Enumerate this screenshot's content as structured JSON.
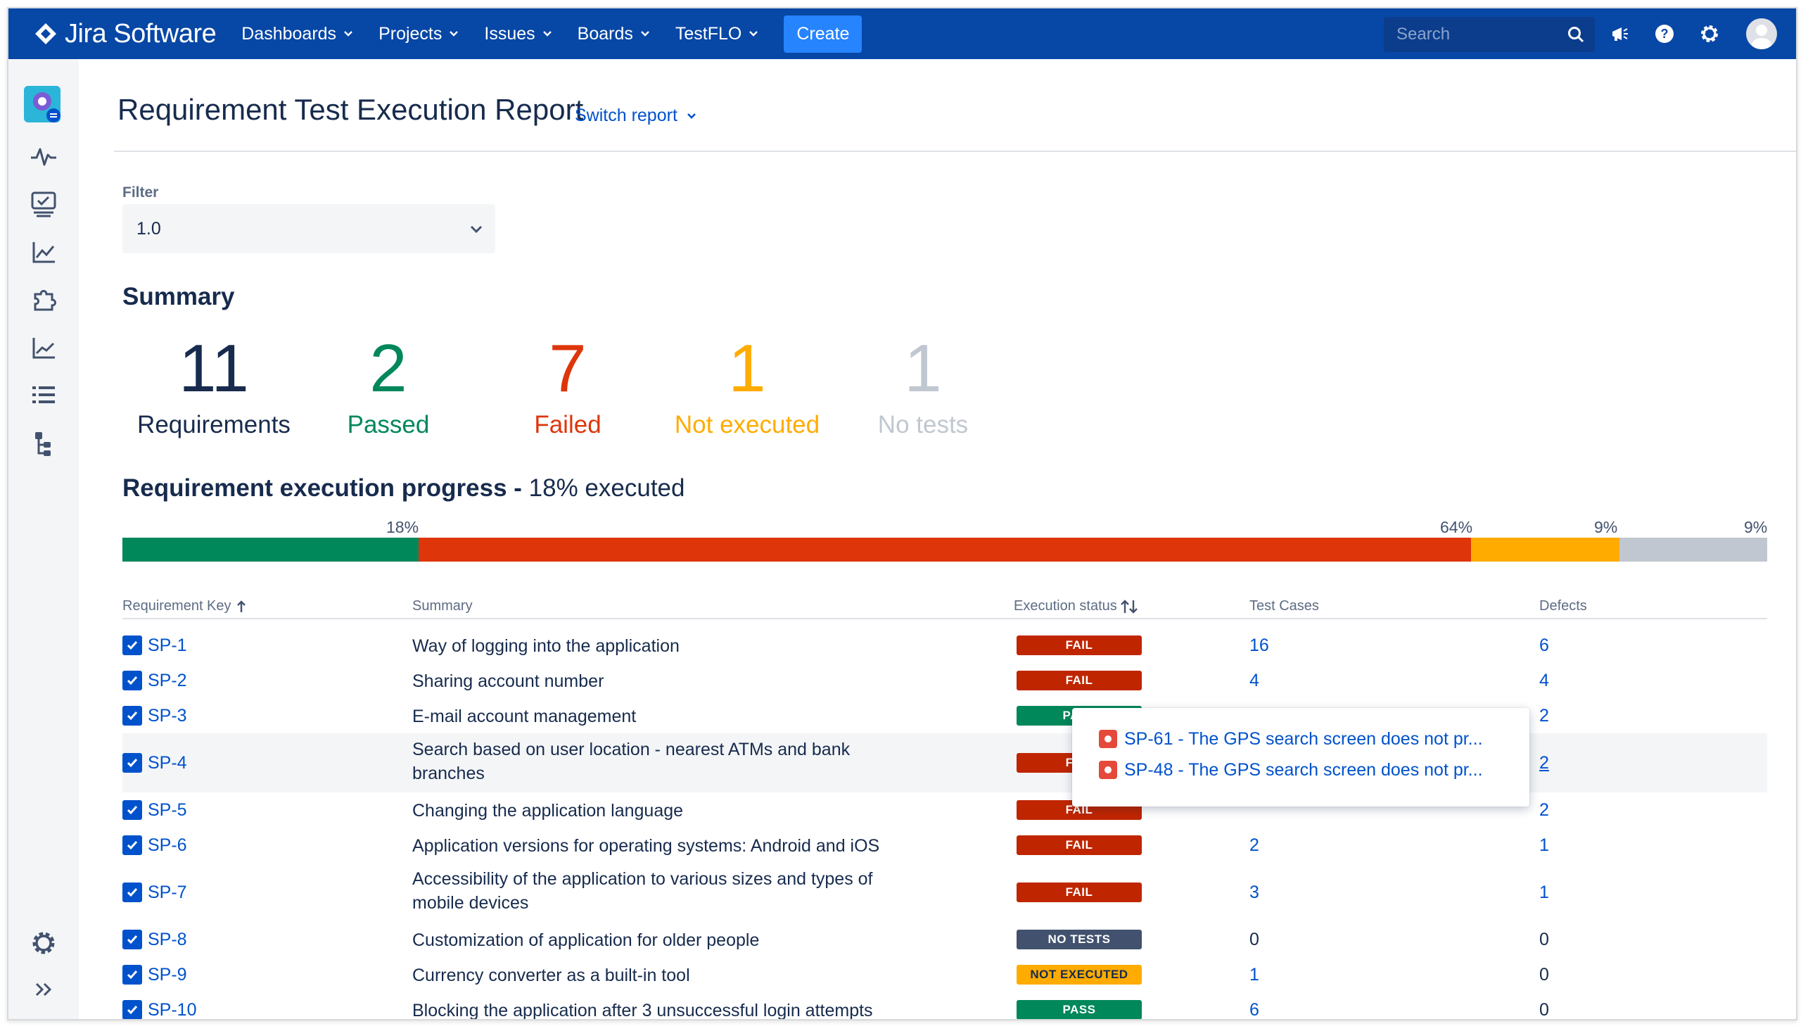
{
  "app": {
    "name": "Jira Software"
  },
  "nav": {
    "items": [
      "Dashboards",
      "Projects",
      "Issues",
      "Boards",
      "TestFLO"
    ],
    "create_label": "Create",
    "search_placeholder": "Search"
  },
  "page": {
    "title": "Requirement Test Execution Report",
    "switch_report": "Switch report"
  },
  "filter": {
    "label": "Filter",
    "value": "1.0"
  },
  "summary": {
    "title": "Summary",
    "stats": [
      {
        "value": "11",
        "label": "Requirements",
        "color": "#172B4D"
      },
      {
        "value": "2",
        "label": "Passed",
        "color": "#00875A"
      },
      {
        "value": "7",
        "label": "Failed",
        "color": "#DE350B"
      },
      {
        "value": "1",
        "label": "Not executed",
        "color": "#FFAB00"
      },
      {
        "value": "1",
        "label": "No tests",
        "color": "#C1C7D0"
      }
    ]
  },
  "progress": {
    "title": "Requirement execution progress",
    "separator": " - ",
    "executed_text": "18% executed",
    "segments": [
      {
        "label": "18%",
        "fraction": 0.18,
        "color": "#00875A"
      },
      {
        "label": "64%",
        "fraction": 0.64,
        "color": "#DE350B"
      },
      {
        "label": "9%",
        "fraction": 0.09,
        "color": "#FFAB00"
      },
      {
        "label": "9%",
        "fraction": 0.09,
        "color": "#C1C7D0"
      }
    ]
  },
  "table": {
    "headers": {
      "key": "Requirement Key",
      "summary": "Summary",
      "status": "Execution status",
      "test_cases": "Test Cases",
      "defects": "Defects"
    },
    "rows": [
      {
        "key": "SP-1",
        "summary": "Way of logging into the application",
        "summary2": "",
        "status": "FAIL",
        "test_cases": "16",
        "defects": "6"
      },
      {
        "key": "SP-2",
        "summary": "Sharing account number",
        "summary2": "",
        "status": "FAIL",
        "test_cases": "4",
        "defects": "4"
      },
      {
        "key": "SP-3",
        "summary": "E-mail account management",
        "summary2": "",
        "status": "PASS",
        "test_cases": "",
        "defects": "2"
      },
      {
        "key": "SP-4",
        "summary": "Search based on user location - nearest ATMs and bank",
        "summary2": "branches",
        "status": "FAIL",
        "test_cases": "",
        "defects": "2"
      },
      {
        "key": "SP-5",
        "summary": "Changing the application language",
        "summary2": "",
        "status": "FAIL",
        "test_cases": "",
        "defects": "2"
      },
      {
        "key": "SP-6",
        "summary": "Application versions for operating systems: Android and iOS",
        "summary2": "",
        "status": "FAIL",
        "test_cases": "2",
        "defects": "1"
      },
      {
        "key": "SP-7",
        "summary": "Accessibility of the application to various sizes and types of",
        "summary2": "mobile devices",
        "status": "FAIL",
        "test_cases": "3",
        "defects": "1"
      },
      {
        "key": "SP-8",
        "summary": "Customization of application for older people",
        "summary2": "",
        "status": "NO TESTS",
        "test_cases": "0",
        "defects": "0"
      },
      {
        "key": "SP-9",
        "summary": "Currency converter as a built-in tool",
        "summary2": "",
        "status": "NOT EXECUTED",
        "test_cases": "1",
        "defects": "0"
      },
      {
        "key": "SP-10",
        "summary": "Blocking the application after 3 unsuccessful login attempts",
        "summary2": "",
        "status": "PASS",
        "test_cases": "6",
        "defects": "0"
      }
    ],
    "status_colors": {
      "FAIL": "#BF2600",
      "PASS": "#00875A",
      "NO TESTS": "#42526E",
      "NOT EXECUTED": "#FFAB00"
    }
  },
  "defects_popup": {
    "items": [
      "SP-61 - The GPS search screen does not pr...",
      "SP-48 - The GPS search screen does not pr..."
    ]
  }
}
